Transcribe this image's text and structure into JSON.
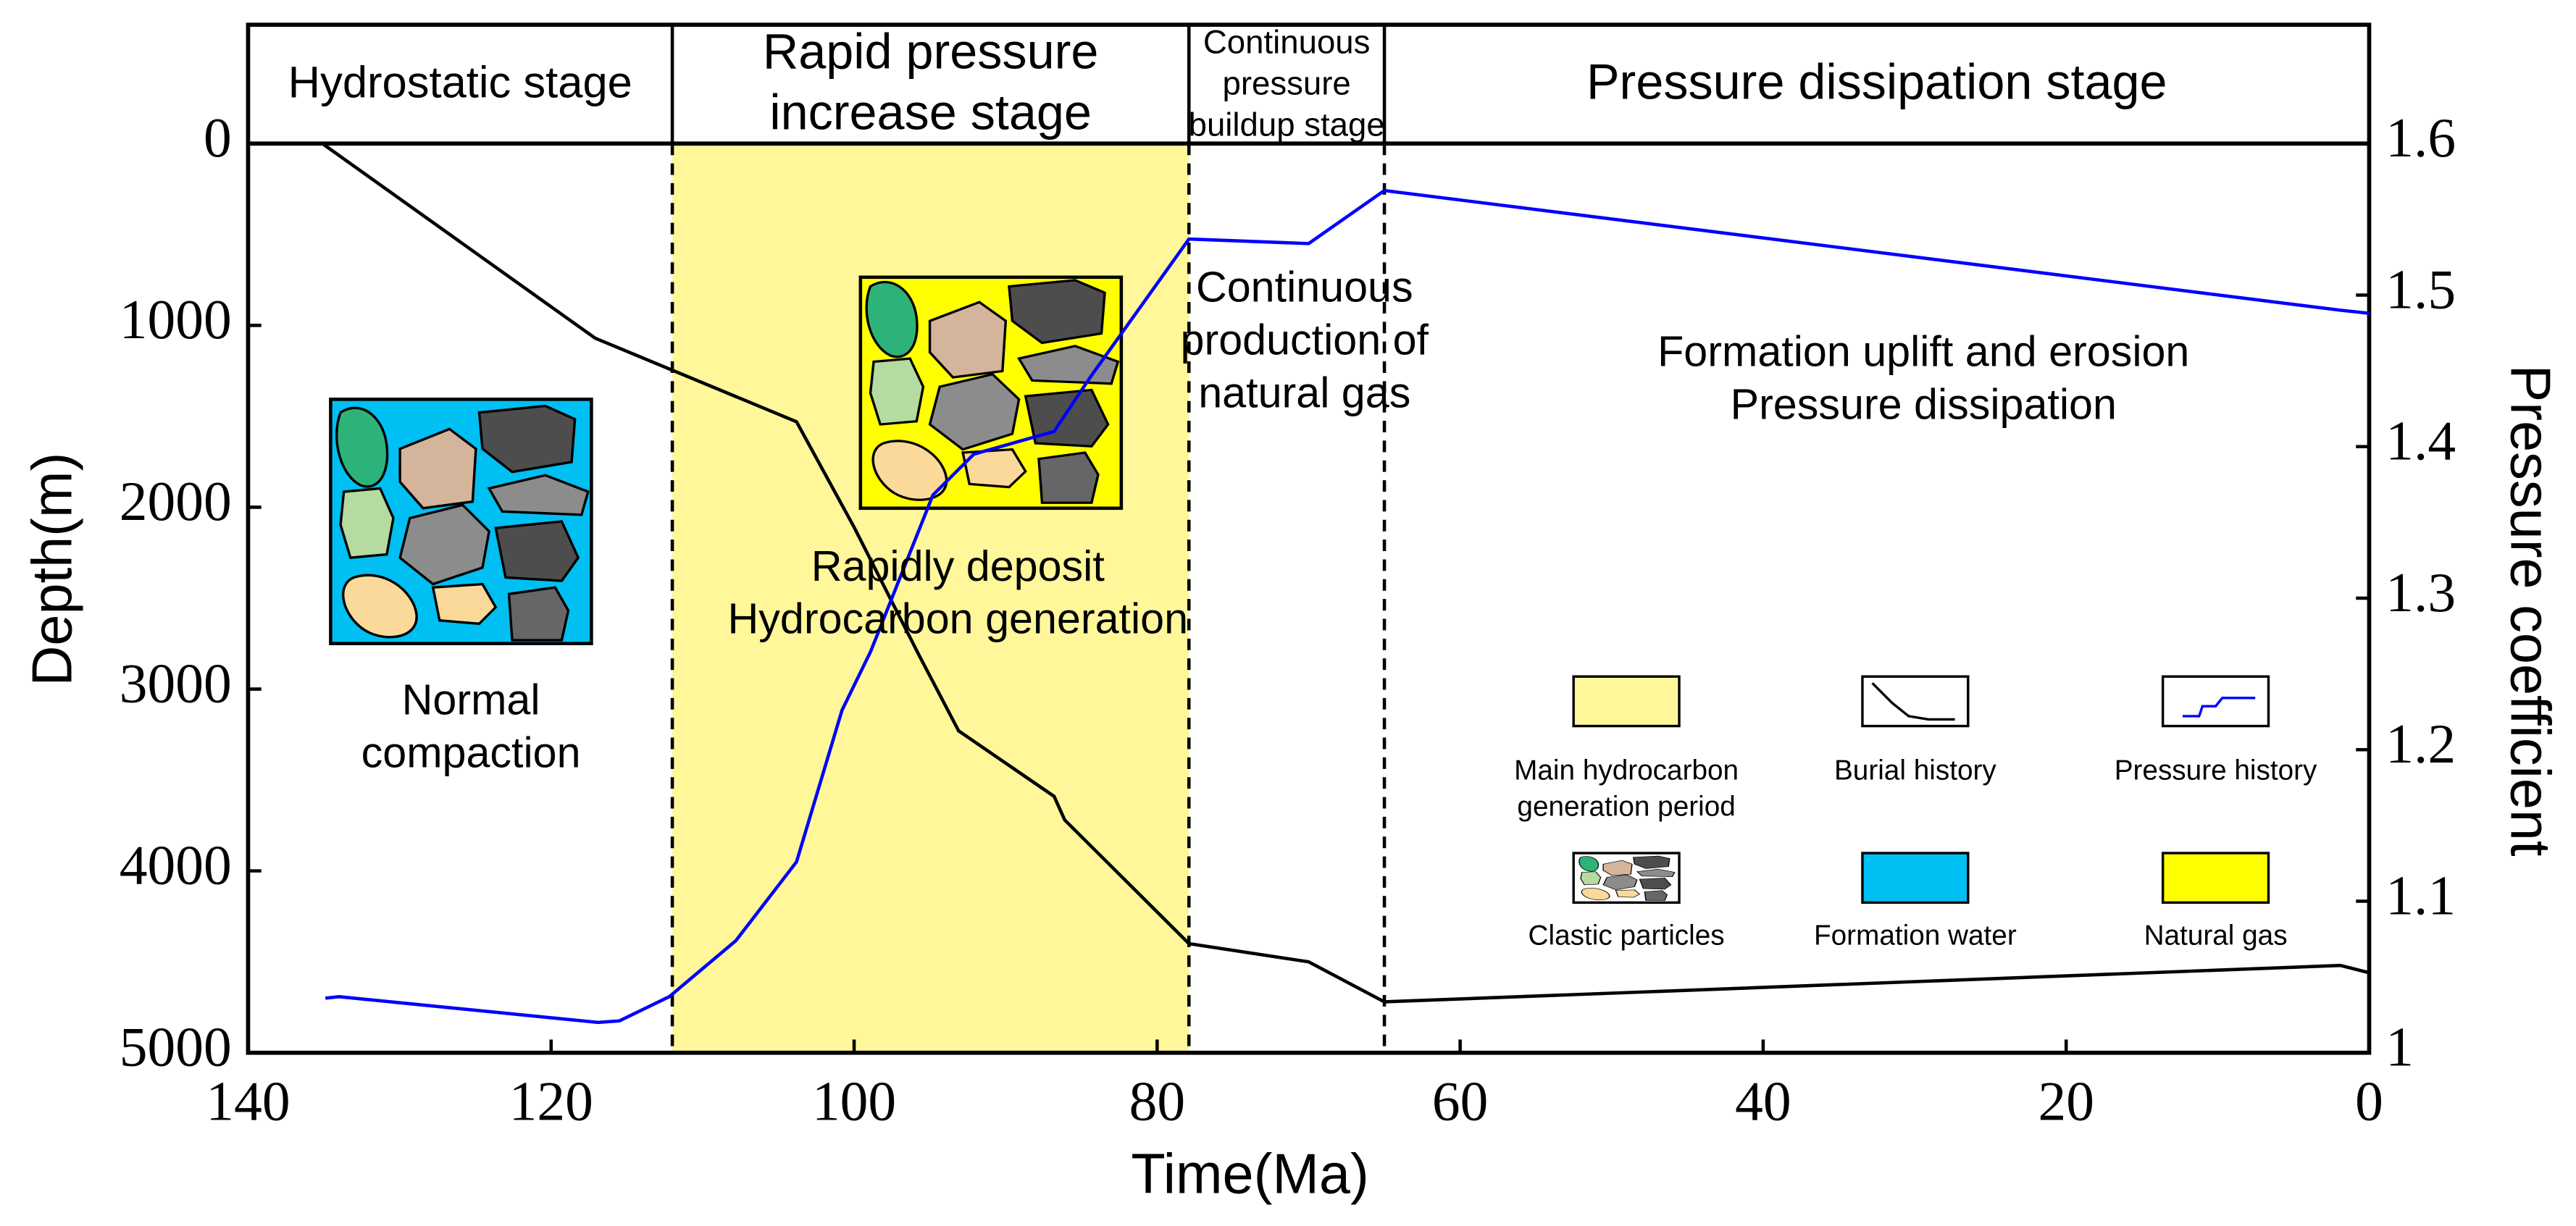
{
  "chart_data": {
    "type": "line",
    "xlabel": "Time(Ma)",
    "ylabel": "Depth(m)",
    "y2label": "Pressure coefficient",
    "xlim": [
      140,
      0
    ],
    "ylim": [
      5000,
      0
    ],
    "y2lim": [
      1,
      1.6
    ],
    "xticks": [
      140,
      120,
      100,
      80,
      60,
      40,
      20,
      0
    ],
    "yticks": [
      0,
      1000,
      2000,
      3000,
      4000,
      5000
    ],
    "y2ticks": [
      1,
      1.1,
      1.2,
      1.3,
      1.4,
      1.5,
      1.6
    ],
    "series": [
      {
        "name": "Burial history",
        "color": "#000000",
        "x": [
          135.1,
          117.1,
          103.8,
          100.0,
          95.8,
          93.1,
          86.8,
          86.1,
          77.9,
          70.0,
          65.0,
          1.9,
          0
        ],
        "values": [
          0,
          1070,
          1530,
          2110,
          2800,
          3230,
          3590,
          3720,
          4400,
          4500,
          4720,
          4520,
          4560
        ]
      },
      {
        "name": "Pressure history",
        "color": "#0000ff",
        "axis": "y2",
        "x": [
          134.9,
          134.0,
          116.9,
          115.5,
          112.2,
          107.8,
          103.8,
          100.8,
          98.9,
          94.8,
          92.1,
          86.8,
          84.4,
          77.9,
          70.0,
          65.0,
          1.9,
          0
        ],
        "values": [
          1.036,
          1.037,
          1.02,
          1.021,
          1.037,
          1.074,
          1.126,
          1.226,
          1.265,
          1.368,
          1.395,
          1.41,
          1.446,
          1.537,
          1.534,
          1.569,
          1.49,
          1.488
        ]
      }
    ],
    "stages": [
      {
        "label": [
          "Hydrostatic stage"
        ],
        "start": 140,
        "end": 112
      },
      {
        "label": [
          "Rapid pressure",
          "increase stage"
        ],
        "start": 112,
        "end": 77.9
      },
      {
        "label": [
          "Continuous",
          "pressure",
          "buildup stage"
        ],
        "start": 77.9,
        "end": 65
      },
      {
        "label": [
          "Pressure dissipation stage"
        ],
        "start": 65,
        "end": 0
      }
    ],
    "annotations": [
      [
        "Normal",
        "compaction"
      ],
      [
        "Rapidly deposit",
        "Hydrocarbon generation"
      ],
      [
        "Continuous",
        "production of",
        "natural gas"
      ],
      [
        "Formation uplift and erosion",
        "Pressure dissipation"
      ]
    ],
    "legend_extra": [
      {
        "label": [
          "Main hydrocarbon",
          "generation period"
        ],
        "color": "#fff79a",
        "start": 112,
        "end": 77.9
      },
      {
        "label": [
          "Clastic particles"
        ]
      },
      {
        "label": [
          "Formation water"
        ],
        "color": "#00bff3"
      },
      {
        "label": [
          "Natural gas"
        ],
        "color": "#ffff00"
      }
    ]
  }
}
